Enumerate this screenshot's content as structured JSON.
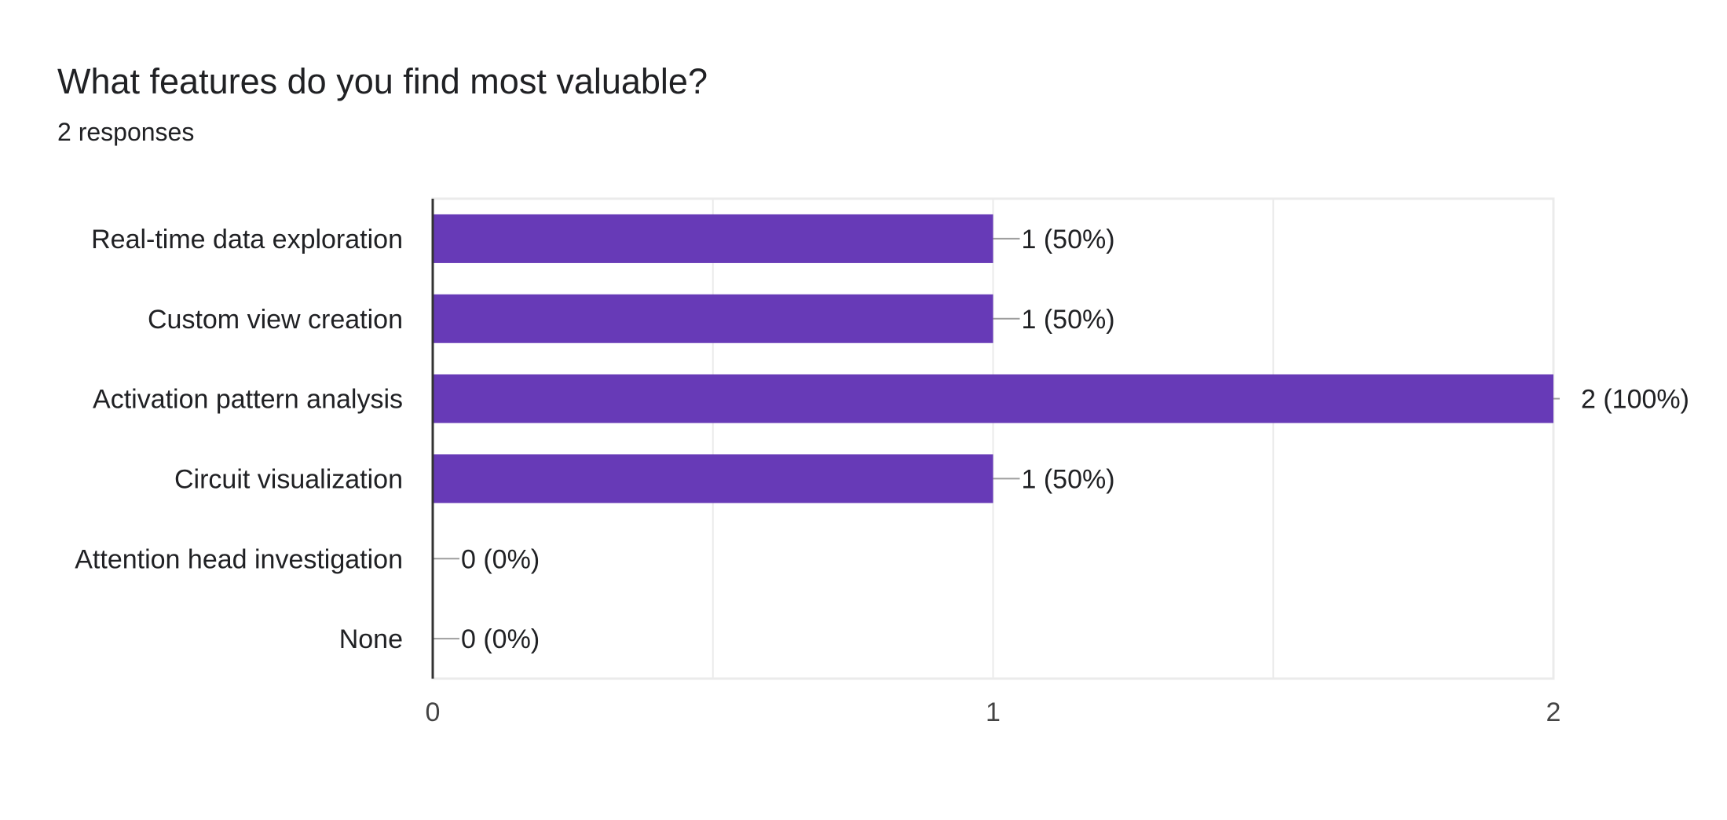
{
  "question": {
    "title": "What features do you find most valuable?",
    "responses": "2 responses"
  },
  "colors": {
    "bar": "#673ab7",
    "grid": "#ebebeb",
    "axis": "#333333",
    "leader": "#9e9e9e",
    "text": "#202124",
    "tick": "#444444"
  },
  "chart_data": {
    "type": "bar",
    "orientation": "horizontal",
    "title": "What features do you find most valuable?",
    "categories": [
      "Real-time data exploration",
      "Custom view creation",
      "Activation pattern analysis",
      "Circuit visualization",
      "Attention head investigation",
      "None"
    ],
    "values": [
      1,
      1,
      2,
      1,
      0,
      0
    ],
    "data_labels": [
      "1 (50%)",
      "1 (50%)",
      "2 (100%)",
      "1 (50%)",
      "0 (0%)",
      "0 (0%)"
    ],
    "xlim": [
      0,
      2
    ],
    "xticks": [
      0,
      1,
      2
    ],
    "xtick_labels": [
      "0",
      "1",
      "2"
    ],
    "grid_steps": [
      0,
      0.5,
      1,
      1.5,
      2
    ],
    "xlabel": "",
    "ylabel": "",
    "legend": "none"
  }
}
